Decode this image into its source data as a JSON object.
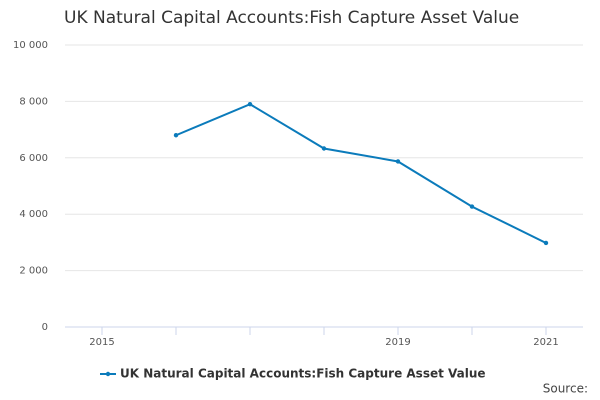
{
  "chart_data": {
    "type": "line",
    "title": "UK Natural Capital Accounts:Fish Capture Asset Value",
    "categories": [
      "2015",
      null,
      null,
      null,
      "2019",
      null,
      "2021"
    ],
    "series": [
      {
        "name": "UK Natural Capital Accounts:Fish Capture Asset Value",
        "color": "#0b7bbb",
        "values": [
          null,
          6800,
          7900,
          6330,
          5870,
          4270,
          2980
        ]
      }
    ],
    "ylim": [
      0,
      10000
    ],
    "yticks": [
      0,
      {
        "value": 2000,
        "label": "2 000"
      },
      {
        "value": 4000,
        "label": "4 000"
      },
      {
        "value": 6000,
        "label": "6 000"
      },
      {
        "value": 8000,
        "label": "8 000"
      },
      {
        "value": 10000,
        "label": "10 000"
      }
    ],
    "grid": true,
    "legend": "bottom",
    "source": "Source:"
  }
}
